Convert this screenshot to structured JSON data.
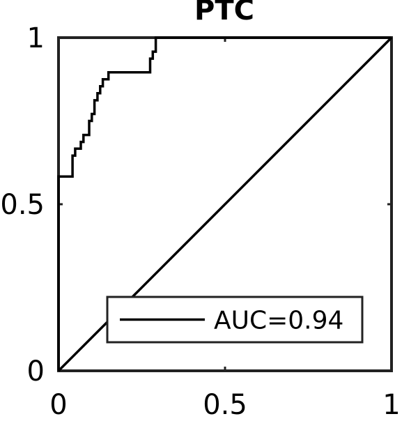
{
  "chart_data": {
    "type": "line",
    "title": "PTC",
    "xlabel": "",
    "ylabel": "",
    "xlim": [
      0,
      1
    ],
    "ylim": [
      0,
      1
    ],
    "x_ticks": [
      {
        "value": 0,
        "label": "0"
      },
      {
        "value": 0.5,
        "label": "0.5"
      },
      {
        "value": 1,
        "label": "1"
      }
    ],
    "y_ticks": [
      {
        "value": 0,
        "label": "0"
      },
      {
        "value": 0.5,
        "label": "0.5"
      },
      {
        "value": 1,
        "label": "1"
      }
    ],
    "grid": false,
    "legend_position": "bottom-right",
    "series": [
      {
        "name": "AUC=0.94",
        "color": "#000000",
        "x": [
          0,
          0,
          0.042,
          0.042,
          0.05,
          0.05,
          0.067,
          0.067,
          0.075,
          0.075,
          0.092,
          0.092,
          0.1,
          0.1,
          0.108,
          0.108,
          0.117,
          0.117,
          0.125,
          0.125,
          0.133,
          0.133,
          0.15,
          0.15,
          0.275,
          0.275,
          0.283,
          0.283,
          0.292,
          0.292,
          1
        ],
        "y": [
          0,
          0.583,
          0.583,
          0.646,
          0.646,
          0.667,
          0.667,
          0.687,
          0.687,
          0.708,
          0.708,
          0.75,
          0.75,
          0.771,
          0.771,
          0.812,
          0.812,
          0.833,
          0.833,
          0.854,
          0.854,
          0.875,
          0.875,
          0.896,
          0.896,
          0.937,
          0.937,
          0.958,
          0.958,
          1,
          1
        ]
      }
    ],
    "reference_line": {
      "x": [
        0,
        1
      ],
      "y": [
        0,
        1
      ],
      "color": "#000000"
    }
  }
}
